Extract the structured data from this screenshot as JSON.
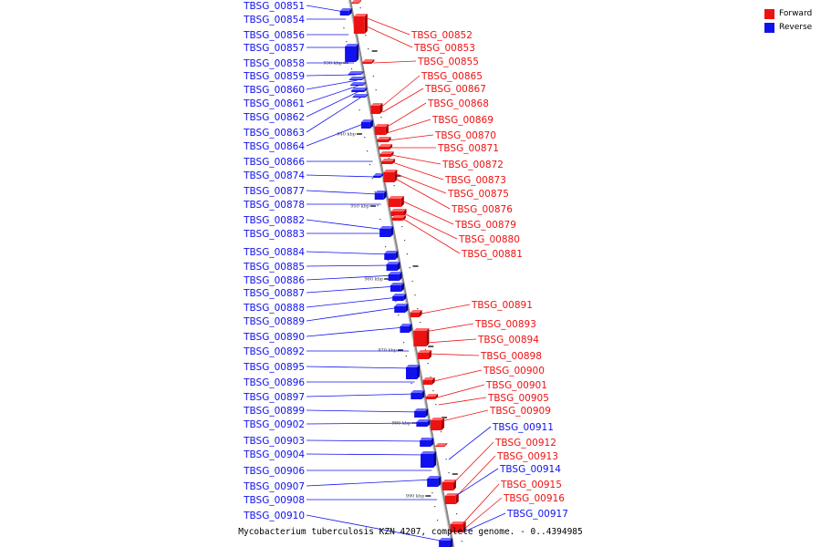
{
  "legend": {
    "items": [
      {
        "label": "Forward",
        "color": "#ee1111"
      },
      {
        "label": "Reverse",
        "color": "#1111ee"
      }
    ]
  },
  "caption": "Mycobacterium tuberculosis KZN 4207, complete genome. - 0..4394985",
  "colors": {
    "forward": "#ee1111",
    "reverse": "#1111ee",
    "backbone": "#888888"
  },
  "ticks": [
    "930 kbp",
    "940 kbp",
    "950 kbp",
    "960 kbp",
    "970 kbp",
    "980 kbp",
    "990 kbp"
  ],
  "genes_reverse": [
    "TBSG_00851",
    "TBSG_00854",
    "TBSG_00856",
    "TBSG_00857",
    "TBSG_00858",
    "TBSG_00859",
    "TBSG_00860",
    "TBSG_00861",
    "TBSG_00862",
    "TBSG_00863",
    "TBSG_00864",
    "TBSG_00866",
    "TBSG_00874",
    "TBSG_00877",
    "TBSG_00878",
    "TBSG_00882",
    "TBSG_00883",
    "TBSG_00884",
    "TBSG_00885",
    "TBSG_00886",
    "TBSG_00887",
    "TBSG_00888",
    "TBSG_00889",
    "TBSG_00890",
    "TBSG_00892",
    "TBSG_00895",
    "TBSG_00896",
    "TBSG_00897",
    "TBSG_00899",
    "TBSG_00902",
    "TBSG_00903",
    "TBSG_00904",
    "TBSG_00906",
    "TBSG_00907",
    "TBSG_00908",
    "TBSG_00910"
  ],
  "genes_forward": [
    "TBSG_00852",
    "TBSG_00853",
    "TBSG_00855",
    "TBSG_00865",
    "TBSG_00867",
    "TBSG_00868",
    "TBSG_00869",
    "TBSG_00870",
    "TBSG_00871",
    "TBSG_00872",
    "TBSG_00873",
    "TBSG_00875",
    "TBSG_00876",
    "TBSG_00879",
    "TBSG_00880",
    "TBSG_00881",
    "TBSG_00891",
    "TBSG_00893",
    "TBSG_00894",
    "TBSG_00898",
    "TBSG_00900",
    "TBSG_00901",
    "TBSG_00905",
    "TBSG_00909",
    "TBSG_00912",
    "TBSG_00913",
    "TBSG_00915",
    "TBSG_00916"
  ],
  "genes_forward_blue_labels": [
    "TBSG_00911",
    "TBSG_00914",
    "TBSG_00917"
  ]
}
